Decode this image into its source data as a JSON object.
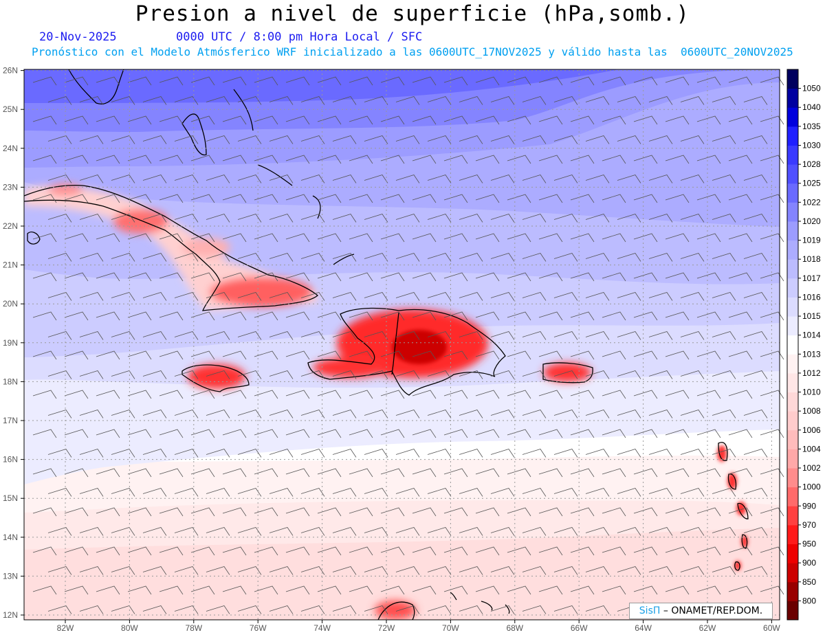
{
  "title": "Presion a nivel de superficie (hPa,somb.)",
  "date": "20-Nov-2025",
  "time_info": "0000 UTC / 8:00 pm Hora Local / SFC",
  "forecast_info": "Pronóstico con el Modelo Atmósferico WRF inicializado a las 0600UTC_17NOV2025 y válido hasta las  0600UTC_20NOV2025",
  "credit": {
    "brand": "SisΠ",
    "org": "ONAMET/REP.DOM."
  },
  "lat_labels": [
    "12N",
    "13N",
    "14N",
    "15N",
    "16N",
    "17N",
    "18N",
    "19N",
    "20N",
    "21N",
    "22N",
    "23N",
    "24N",
    "25N",
    "26N"
  ],
  "lon_labels": [
    "82W",
    "80W",
    "78W",
    "76W",
    "74W",
    "72W",
    "70W",
    "68W",
    "66W",
    "64W",
    "62W",
    "60W"
  ],
  "colorbar": {
    "levels": [
      "800",
      "850",
      "900",
      "950",
      "970",
      "990",
      "1000",
      "1002",
      "1004",
      "1006",
      "1008",
      "1010",
      "1012",
      "1013",
      "1014",
      "1015",
      "1016",
      "1017",
      "1018",
      "1019",
      "1020",
      "1022",
      "1025",
      "1028",
      "1030",
      "1035",
      "1040",
      "1050"
    ],
    "colors": [
      "#6a0000",
      "#990000",
      "#cc0000",
      "#ee0000",
      "#ff1a1a",
      "#ff4040",
      "#ff6a6a",
      "#ff8c8c",
      "#ffa8a8",
      "#ffbcbc",
      "#ffcccc",
      "#ffd8d8",
      "#ffe6e6",
      "#fff2f2",
      "#ffffff",
      "#ececff",
      "#dcdcff",
      "#ccccff",
      "#bcbcff",
      "#acacff",
      "#9c9cff",
      "#8484ff",
      "#6a6aff",
      "#5050ff",
      "#3a3aff",
      "#2020ff",
      "#0000dd",
      "#0000a0",
      "#00005e"
    ]
  },
  "map_regions": {
    "cuba": "Cuba",
    "jamaica": "Jamaica",
    "hispaniola": "Hispaniola",
    "puerto_rico": "Puerto Rico",
    "bahamas": "Bahamas",
    "florida": "Florida",
    "lesser_antilles": "Lesser Antilles",
    "venezuela_coast": "Venezuela"
  }
}
